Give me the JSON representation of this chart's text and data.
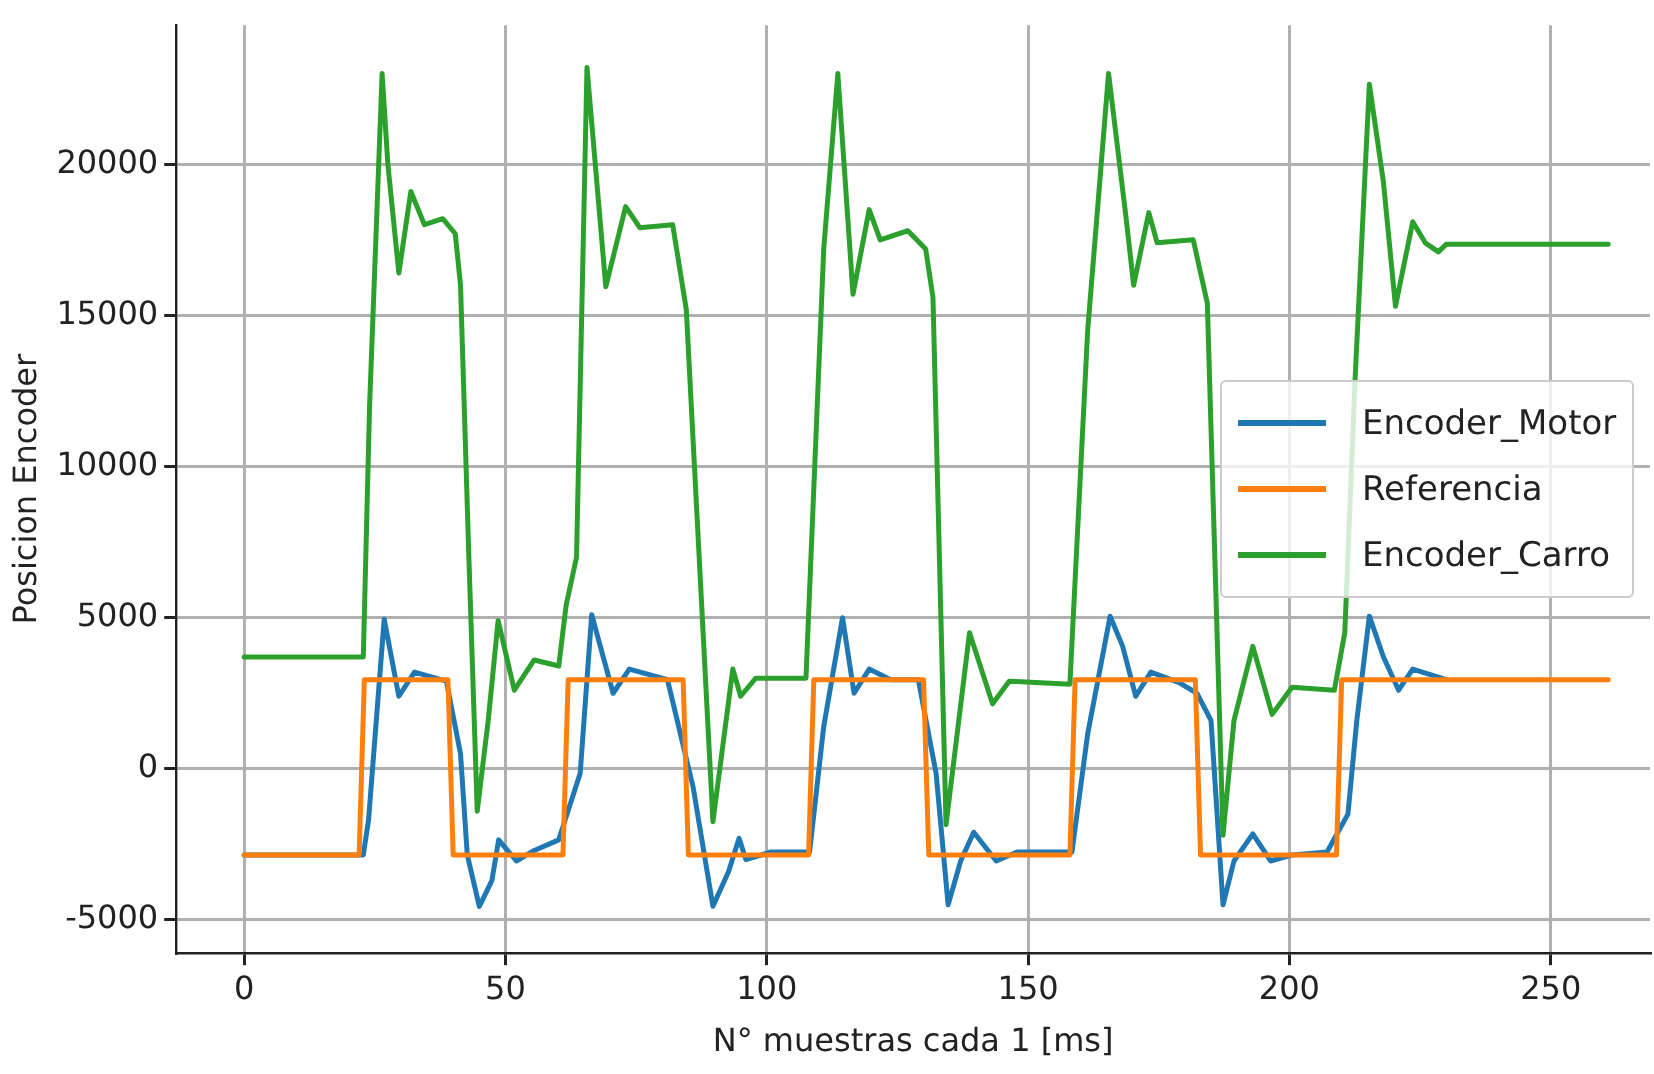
{
  "chart_data": {
    "type": "line",
    "xlabel": "N° muestras cada 1 [ms]",
    "ylabel": "Posicion Encoder",
    "xlim": [
      -13,
      269
    ],
    "ylim": [
      -6100,
      24600
    ],
    "xticks": [
      0,
      50,
      100,
      150,
      200,
      250
    ],
    "yticks": [
      -5000,
      0,
      5000,
      10000,
      15000,
      20000
    ],
    "grid": true,
    "legend": "right",
    "marker": "none",
    "line_style": "solid",
    "series": [
      {
        "name": "Encoder_Motor",
        "color": "#1f77b4",
        "x": [
          0,
          22.8,
          23.8,
          25.2,
          26.8,
          29.6,
          32.6,
          38.7,
          41.4,
          42.7,
          45,
          47.4,
          48.7,
          52.1,
          55.5,
          60.2,
          64.3,
          66.5,
          70.6,
          73.7,
          81,
          85.9,
          89.7,
          92.7,
          94.7,
          96,
          100.8,
          108.2,
          110.9,
          114.5,
          116.7,
          119.6,
          123.7,
          129,
          132.4,
          134.7,
          137.1,
          139.6,
          143.9,
          147.9,
          158.4,
          161.4,
          165.7,
          168.1,
          170.6,
          173.5,
          178.9,
          182.3,
          185,
          187.3,
          189.4,
          193,
          196.4,
          200.5,
          207.2,
          211.2,
          212.9,
          215.3,
          218,
          220.9,
          223.6,
          230
        ],
        "values": [
          -2850,
          -2850,
          -1700,
          1400,
          4950,
          2400,
          3200,
          2900,
          500,
          -2850,
          -4550,
          -3700,
          -2350,
          -3050,
          -2700,
          -2350,
          -150,
          5100,
          2500,
          3300,
          2950,
          -600,
          -4550,
          -3400,
          -2300,
          -3000,
          -2750,
          -2750,
          1400,
          5000,
          2500,
          3300,
          2950,
          2950,
          -150,
          -4500,
          -3050,
          -2100,
          -3050,
          -2750,
          -2750,
          1150,
          5050,
          4050,
          2400,
          3200,
          2850,
          2500,
          1600,
          -4500,
          -3050,
          -2150,
          -3050,
          -2850,
          -2750,
          -1500,
          1600,
          5050,
          3700,
          2600,
          3300,
          2950
        ]
      },
      {
        "name": "Referencia",
        "color": "#ff7f0e",
        "x": [
          0,
          22,
          23,
          39,
          40,
          61,
          62,
          84,
          85,
          108,
          109,
          130,
          131,
          158,
          159,
          182,
          183,
          209,
          210,
          261
        ],
        "values": [
          -2850,
          -2850,
          2950,
          2950,
          -2850,
          -2850,
          2950,
          2950,
          -2850,
          -2850,
          2950,
          2950,
          -2850,
          -2850,
          2950,
          2950,
          -2850,
          -2850,
          2950,
          2950
        ]
      },
      {
        "name": "Encoder_Carro",
        "color": "#2ca02c",
        "x": [
          0,
          22.8,
          24,
          26.4,
          27.5,
          29.6,
          31.9,
          34.5,
          38,
          40.4,
          41.4,
          43,
          44.6,
          46.7,
          48.6,
          51.7,
          55.5,
          60.2,
          61.6,
          63.6,
          65.6,
          69.2,
          73,
          75.7,
          82,
          84.6,
          89.7,
          93.5,
          95,
          97.9,
          107.5,
          110.9,
          113.6,
          116.5,
          119.6,
          121.7,
          127,
          130.4,
          131.8,
          134.3,
          138.8,
          143.2,
          146.4,
          158,
          161.4,
          165.4,
          168.7,
          170.2,
          173.1,
          174.7,
          181.6,
          184.3,
          187.3,
          189.4,
          193,
          196.7,
          200.5,
          208.6,
          210.6,
          212.6,
          215.3,
          218,
          220.3,
          223.6,
          226,
          228.5,
          230,
          261
        ],
        "values": [
          3700,
          3700,
          12000,
          23000,
          20000,
          16400,
          19100,
          18000,
          18200,
          17700,
          16000,
          7000,
          -1400,
          1600,
          4900,
          2600,
          3600,
          3400,
          5400,
          7000,
          23200,
          15950,
          18600,
          17900,
          18000,
          15200,
          -1750,
          3300,
          2400,
          3000,
          3000,
          17200,
          23000,
          15700,
          18500,
          17500,
          17800,
          17200,
          15600,
          -1850,
          4500,
          2150,
          2900,
          2800,
          14500,
          23000,
          18300,
          16000,
          18400,
          17400,
          17500,
          15400,
          -2200,
          1600,
          4050,
          1800,
          2700,
          2600,
          4500,
          13000,
          22650,
          19400,
          15300,
          18100,
          17400,
          17100,
          17350,
          17350
        ]
      }
    ]
  }
}
